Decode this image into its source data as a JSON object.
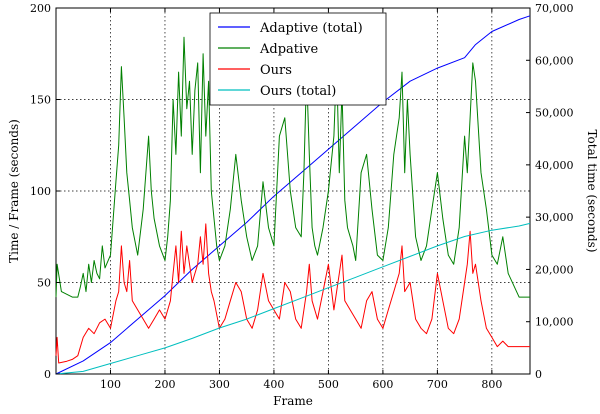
{
  "chart_data": {
    "type": "line",
    "xlabel": "Frame",
    "ylabel_left": "Time / Frame (seconds)",
    "ylabel_right": "Total time (seconds)",
    "xlim": [
      0,
      870
    ],
    "ylim_left": [
      0,
      200
    ],
    "ylim_right": [
      0,
      70000
    ],
    "xticks": [
      100,
      200,
      300,
      400,
      500,
      600,
      700,
      800
    ],
    "yticks_left": [
      0,
      50,
      100,
      150,
      200
    ],
    "yticks_right": [
      0,
      10000,
      20000,
      30000,
      40000,
      50000,
      60000,
      70000
    ],
    "ytick_labels_right": [
      "0",
      "10,000",
      "20,000",
      "30,000",
      "40,000",
      "50,000",
      "60,000",
      "70,000"
    ],
    "grid": true,
    "legend_position": "top-center",
    "series": [
      {
        "name": "Adaptive (total)",
        "axis": "right",
        "color": "#0000ff",
        "x": [
          0,
          50,
          100,
          150,
          200,
          250,
          300,
          350,
          400,
          450,
          500,
          550,
          600,
          650,
          700,
          750,
          770,
          800,
          850,
          870
        ],
        "y": [
          0,
          2500,
          6000,
          10500,
          15000,
          20000,
          24500,
          29000,
          34000,
          38500,
          43000,
          47500,
          52000,
          56000,
          58500,
          60500,
          63000,
          65500,
          67800,
          68500
        ]
      },
      {
        "name": "Adpative",
        "axis": "left",
        "color": "#008000",
        "x": [
          0,
          2,
          10,
          30,
          40,
          45,
          50,
          55,
          60,
          65,
          70,
          75,
          80,
          85,
          90,
          100,
          105,
          110,
          115,
          120,
          125,
          130,
          135,
          140,
          150,
          160,
          170,
          175,
          180,
          190,
          200,
          205,
          210,
          215,
          220,
          225,
          230,
          235,
          240,
          245,
          250,
          255,
          260,
          265,
          270,
          275,
          280,
          285,
          290,
          295,
          300,
          310,
          320,
          330,
          340,
          350,
          360,
          370,
          380,
          390,
          400,
          410,
          420,
          430,
          440,
          450,
          455,
          460,
          465,
          470,
          475,
          480,
          490,
          500,
          510,
          515,
          520,
          525,
          530,
          535,
          540,
          545,
          550,
          560,
          570,
          580,
          590,
          600,
          610,
          620,
          630,
          635,
          640,
          645,
          650,
          660,
          670,
          680,
          690,
          700,
          710,
          720,
          730,
          740,
          750,
          755,
          760,
          765,
          770,
          780,
          790,
          800,
          810,
          820,
          830,
          850,
          870
        ],
        "y": [
          42,
          60,
          45,
          42,
          42,
          48,
          55,
          45,
          60,
          50,
          62,
          55,
          52,
          70,
          58,
          65,
          85,
          105,
          125,
          168,
          140,
          110,
          95,
          80,
          65,
          90,
          130,
          100,
          85,
          70,
          62,
          75,
          95,
          150,
          120,
          165,
          130,
          184,
          145,
          160,
          120,
          155,
          170,
          110,
          175,
          130,
          160,
          100,
          85,
          70,
          62,
          70,
          90,
          120,
          95,
          75,
          62,
          70,
          105,
          80,
          70,
          130,
          140,
          100,
          80,
          75,
          110,
          165,
          120,
          80,
          70,
          65,
          80,
          100,
          130,
          170,
          110,
          155,
          95,
          80,
          75,
          70,
          62,
          110,
          120,
          90,
          65,
          62,
          80,
          120,
          140,
          165,
          110,
          150,
          120,
          75,
          62,
          70,
          90,
          110,
          85,
          65,
          60,
          80,
          130,
          110,
          140,
          170,
          160,
          110,
          90,
          65,
          60,
          75,
          55,
          42,
          42
        ]
      },
      {
        "name": "Ours",
        "axis": "left",
        "color": "#ff0000",
        "x": [
          0,
          2,
          5,
          20,
          30,
          40,
          50,
          60,
          70,
          80,
          90,
          100,
          110,
          115,
          120,
          125,
          130,
          135,
          140,
          150,
          160,
          170,
          180,
          190,
          200,
          210,
          215,
          220,
          225,
          230,
          235,
          240,
          250,
          260,
          265,
          270,
          275,
          280,
          285,
          290,
          300,
          310,
          320,
          330,
          340,
          350,
          360,
          370,
          380,
          390,
          400,
          410,
          420,
          430,
          440,
          450,
          460,
          465,
          470,
          480,
          490,
          500,
          510,
          520,
          525,
          530,
          540,
          550,
          560,
          570,
          580,
          590,
          600,
          610,
          620,
          630,
          635,
          640,
          650,
          660,
          670,
          680,
          690,
          700,
          710,
          720,
          730,
          740,
          750,
          755,
          760,
          765,
          770,
          780,
          790,
          800,
          810,
          820,
          830,
          850,
          870
        ],
        "y": [
          10,
          20,
          6,
          7,
          8,
          10,
          20,
          25,
          22,
          28,
          30,
          25,
          40,
          45,
          70,
          50,
          45,
          62,
          40,
          35,
          30,
          25,
          30,
          35,
          30,
          40,
          55,
          70,
          50,
          78,
          55,
          70,
          50,
          60,
          75,
          60,
          82,
          55,
          45,
          40,
          25,
          30,
          40,
          50,
          45,
          30,
          25,
          35,
          55,
          40,
          35,
          30,
          50,
          45,
          30,
          25,
          45,
          60,
          40,
          30,
          45,
          60,
          35,
          55,
          65,
          40,
          35,
          30,
          25,
          40,
          45,
          30,
          25,
          35,
          45,
          55,
          70,
          45,
          50,
          30,
          25,
          22,
          30,
          55,
          40,
          25,
          22,
          30,
          50,
          60,
          78,
          55,
          60,
          40,
          25,
          20,
          15,
          18,
          15,
          15,
          15
        ]
      },
      {
        "name": "Ours (total)",
        "axis": "right",
        "color": "#00bfbf",
        "x": [
          0,
          50,
          100,
          150,
          200,
          250,
          300,
          350,
          400,
          450,
          500,
          550,
          600,
          650,
          700,
          750,
          800,
          850,
          870
        ],
        "y": [
          0,
          500,
          2000,
          3500,
          5000,
          6800,
          8800,
          10500,
          12500,
          14500,
          16500,
          18500,
          20500,
          22500,
          24500,
          26300,
          27500,
          28300,
          28800
        ]
      }
    ]
  }
}
